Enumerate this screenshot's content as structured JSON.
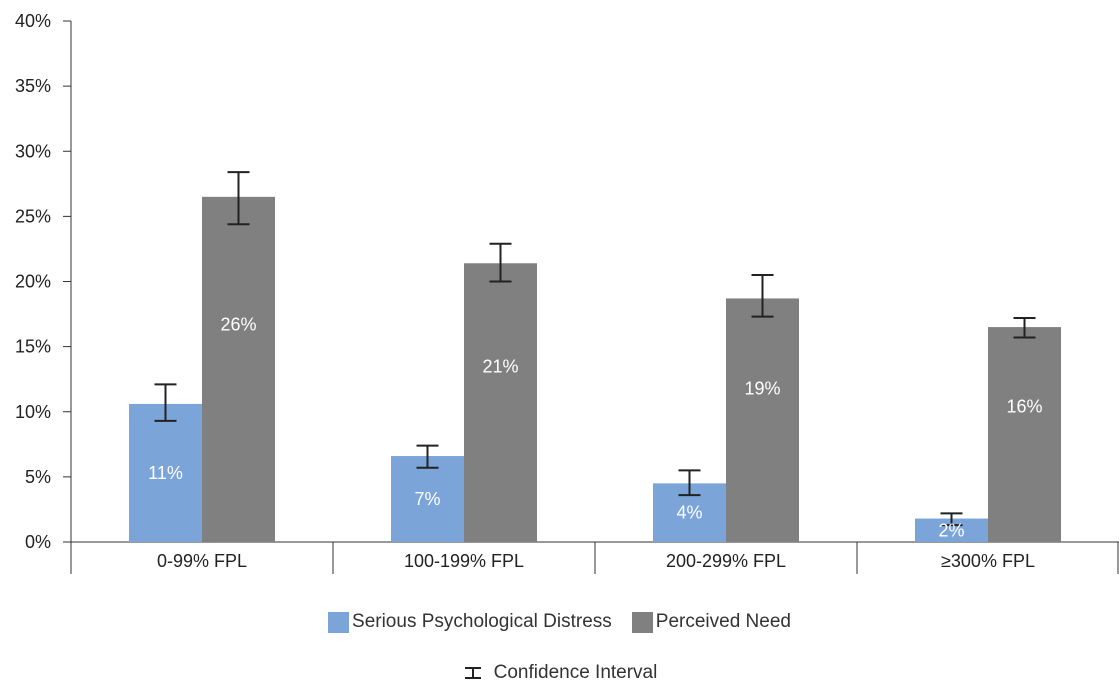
{
  "chart_data": {
    "type": "bar",
    "categories": [
      "0-99% FPL",
      "100-199% FPL",
      "200-299% FPL",
      "≥300% FPL"
    ],
    "series": [
      {
        "name": "Serious Psychological Distress",
        "color": "#7ba4d8",
        "values": [
          10.6,
          6.6,
          4.5,
          1.8
        ],
        "labels": [
          "11%",
          "7%",
          "4%",
          "2%"
        ],
        "ci": [
          [
            9.3,
            12.1
          ],
          [
            5.7,
            7.4
          ],
          [
            3.6,
            5.5
          ],
          [
            1.3,
            2.2
          ]
        ]
      },
      {
        "name": "Perceived Need",
        "color": "#808080",
        "values": [
          26.5,
          21.4,
          18.7,
          16.5
        ],
        "labels": [
          "26%",
          "21%",
          "19%",
          "16%"
        ],
        "ci": [
          [
            24.4,
            28.4
          ],
          [
            20.0,
            22.9
          ],
          [
            17.3,
            20.5
          ],
          [
            15.7,
            17.2
          ]
        ]
      }
    ],
    "yaxis": {
      "ticks": [
        0,
        5,
        10,
        15,
        20,
        25,
        30,
        35,
        40
      ],
      "tick_labels": [
        "0%",
        "5%",
        "10%",
        "15%",
        "20%",
        "25%",
        "30%",
        "35%",
        "40%"
      ],
      "ylim": [
        0,
        40
      ]
    },
    "ci_legend_label": "Confidence Interval",
    "grid": false,
    "legend_position": "bottom-center"
  }
}
